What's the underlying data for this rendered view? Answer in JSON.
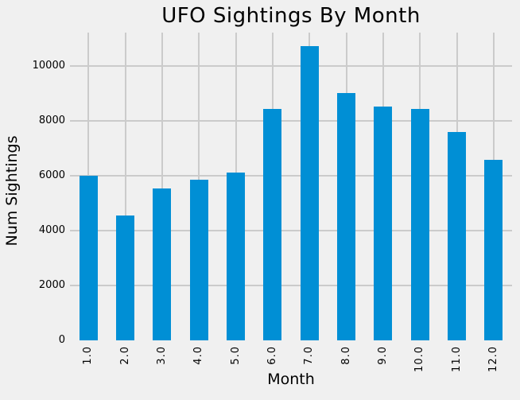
{
  "chart_data": {
    "type": "bar",
    "title": "UFO Sightings By Month",
    "xlabel": "Month",
    "ylabel": "Num Sightings",
    "categories": [
      "1.0",
      "2.0",
      "3.0",
      "4.0",
      "5.0",
      "6.0",
      "7.0",
      "8.0",
      "9.0",
      "10.0",
      "11.0",
      "12.0"
    ],
    "values": [
      6000,
      4560,
      5530,
      5840,
      6120,
      8420,
      10710,
      9020,
      8510,
      8420,
      7600,
      6570
    ],
    "yticks": [
      0,
      2000,
      4000,
      6000,
      8000,
      10000
    ],
    "ytick_labels": [
      "0",
      "2000",
      "4000",
      "6000",
      "8000",
      "10000"
    ],
    "ylim": [
      0,
      11210
    ],
    "grid": true,
    "legend": null,
    "legend_position": null,
    "colors": {
      "bar": "#008fd5",
      "background": "#f0f0f0",
      "gridline": "#cbcbcb",
      "text": "#000000"
    }
  }
}
